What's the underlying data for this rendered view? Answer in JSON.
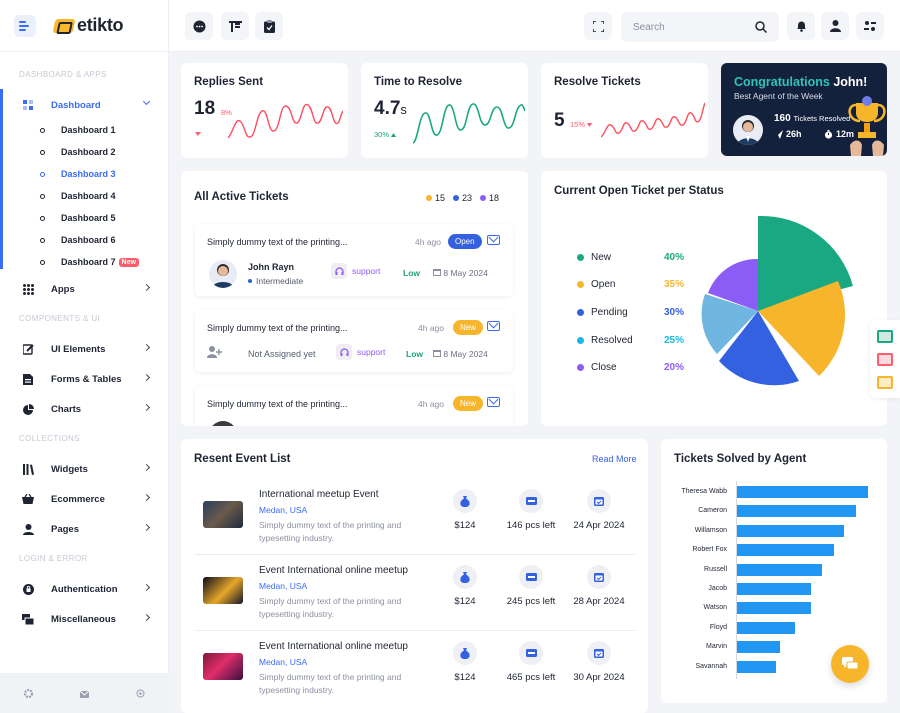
{
  "brand": {
    "name": "etikto"
  },
  "sidebar": {
    "sections": [
      "DASHBOARD & APPS",
      "COMPONENTS & UI",
      "COLLECTIONS",
      "LOGIN & ERROR"
    ],
    "dashboard_label": "Dashboard",
    "dashboards": [
      "Dashboard 1",
      "Dashboard 2",
      "Dashboard 3",
      "Dashboard 4",
      "Dashboard 5",
      "Dashboard 6",
      "Dashboard 7"
    ],
    "new_badge": "New",
    "items": {
      "apps": "Apps",
      "ui_elements": "UI Elements",
      "forms_tables": "Forms & Tables",
      "charts": "Charts",
      "widgets": "Widgets",
      "ecommerce": "Ecommerce",
      "pages": "Pages",
      "authentication": "Authentication",
      "miscellaneous": "Miscellaneous"
    }
  },
  "topbar": {
    "search_placeholder": "Search"
  },
  "stats": {
    "replies": {
      "title": "Replies Sent",
      "value": "18",
      "pct": "8%"
    },
    "resolve_time": {
      "title": "Time to Resolve",
      "value": "4.7",
      "unit": "s",
      "pct": "30%"
    },
    "resolve_tickets": {
      "title": "Resolve Tickets",
      "value": "5",
      "pct": "15%"
    }
  },
  "congrats": {
    "title": "Congratulations",
    "name": "John!",
    "subtitle": "Best Agent of the Week",
    "tickets_count": "160",
    "tickets_label": "Tickets Resolved",
    "speed": "26h",
    "time": "12m"
  },
  "active_tickets": {
    "title": "All Active Tickets",
    "counts": [
      "15",
      "23",
      "18"
    ],
    "tickets": [
      {
        "text": "Simply dummy text of the printing...",
        "ago": "4h ago",
        "status": "Open",
        "user": "John Rayn",
        "level": "Intermediate",
        "tag": "support",
        "priority": "Low",
        "date": "8 May 2024"
      },
      {
        "text": "Simply dummy text of the printing...",
        "ago": "4h ago",
        "status": "New",
        "user": "Not Assigned yet",
        "tag": "support",
        "priority": "Low",
        "date": "8 May 2024"
      },
      {
        "text": "Simply dummy text of the printing...",
        "ago": "4h ago",
        "status": "New"
      }
    ]
  },
  "open_status": {
    "title": "Current Open Ticket per Status",
    "items": [
      {
        "label": "New",
        "value": "40%",
        "color": "#1aa883"
      },
      {
        "label": "Open",
        "value": "35%",
        "color": "#f7b52c"
      },
      {
        "label": "Pending",
        "value": "30%",
        "color": "#3461e0"
      },
      {
        "label": "Resolved",
        "value": "25%",
        "color": "#18b7e6"
      },
      {
        "label": "Close",
        "value": "20%",
        "color": "#8b5cf6"
      }
    ]
  },
  "events": {
    "title": "Resent Event List",
    "read_more": "Read More",
    "rows": [
      {
        "title": "International meetup Event",
        "location": "Medan, USA",
        "desc": "Simply dummy text of the printing and typesetting industry.",
        "price": "$124",
        "left": "146 pcs left",
        "date": "24 Apr 2024"
      },
      {
        "title": "Event International online meetup",
        "location": "Medan, USA",
        "desc": "Simply dummy text of the printing and typesetting industry.",
        "price": "$124",
        "left": "245 pcs left",
        "date": "28 Apr 2024"
      },
      {
        "title": "Event International online meetup",
        "location": "Medan, USA",
        "desc": "Simply dummy text of the printing and typesetting industry.",
        "price": "$124",
        "left": "465 pcs left",
        "date": "30 Apr 2024"
      }
    ]
  },
  "chart_data": {
    "type": "bar",
    "title": "Tickets Solved by Agent",
    "orientation": "horizontal",
    "categories": [
      "Theresa Wabb",
      "Cameron",
      "Willamson",
      "Robert Fox",
      "Russell",
      "Jacob",
      "Watson",
      "Floyd",
      "Marvin",
      "Savannah"
    ],
    "values": [
      100,
      91,
      82,
      74,
      65,
      57,
      57,
      45,
      33,
      30
    ],
    "xlim": [
      0,
      100
    ],
    "grid": false,
    "color": "#2196f3"
  }
}
